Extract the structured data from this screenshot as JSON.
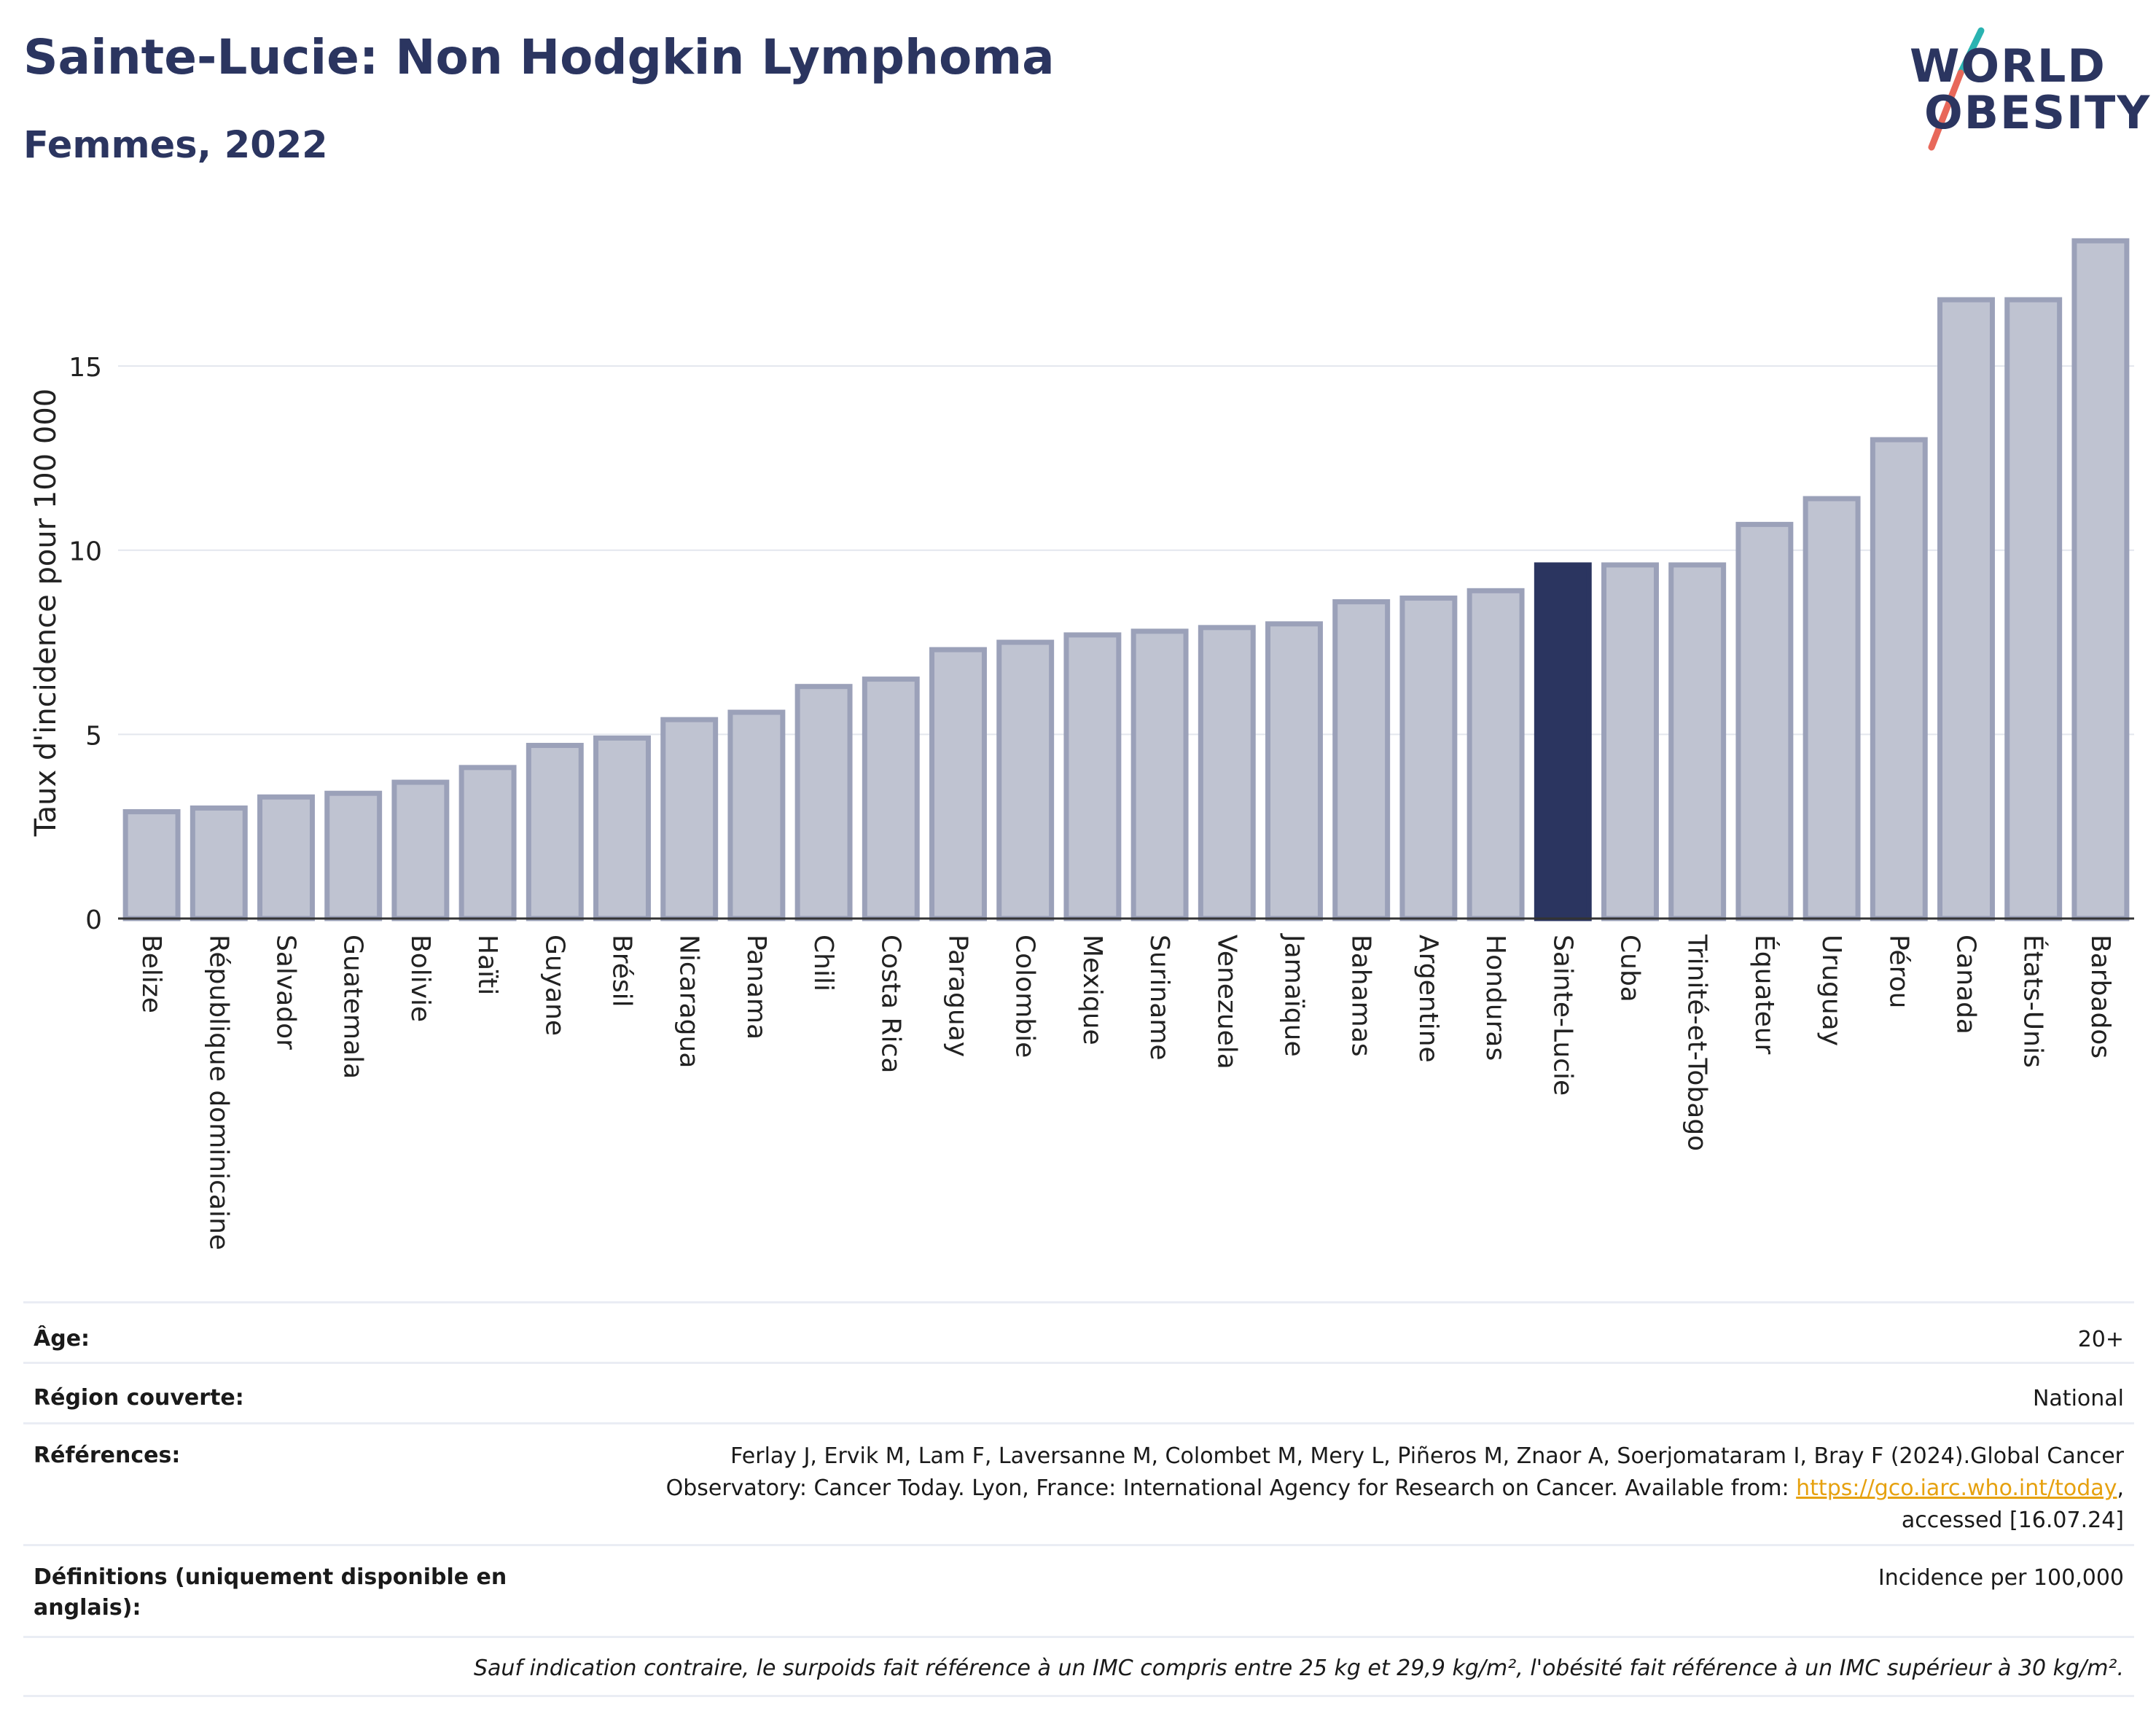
{
  "header": {
    "title": "Sainte-Lucie: Non Hodgkin Lymphoma",
    "subtitle": "Femmes, 2022"
  },
  "logo": {
    "line1": "WORLD",
    "line2": "OBESITY"
  },
  "colors": {
    "bar": "#bfc3d1",
    "bar_border": "#9ba1b9",
    "highlight": "#2b3560",
    "grid": "#e3e6ee"
  },
  "chart_data": {
    "type": "bar",
    "ylabel": "Taux d'incidence pour 100 000",
    "ylim": [
      0,
      19
    ],
    "yticks": [
      0,
      5,
      10,
      15
    ],
    "grid": true,
    "highlight": "Sainte-Lucie",
    "categories": [
      "Belize",
      "République dominicaine",
      "Salvador",
      "Guatemala",
      "Bolivie",
      "Haïti",
      "Guyane",
      "Brésil",
      "Nicaragua",
      "Panama",
      "Chili",
      "Costa Rica",
      "Paraguay",
      "Colombie",
      "Mexique",
      "Suriname",
      "Venezuela",
      "Jamaïque",
      "Bahamas",
      "Argentine",
      "Honduras",
      "Sainte-Lucie",
      "Cuba",
      "Trinité-et-Tobago",
      "Équateur",
      "Uruguay",
      "Pérou",
      "Canada",
      "États-Unis",
      "Barbados"
    ],
    "values": [
      2.9,
      3.0,
      3.3,
      3.4,
      3.7,
      4.1,
      4.7,
      4.9,
      5.4,
      5.6,
      6.3,
      6.5,
      7.3,
      7.5,
      7.7,
      7.8,
      7.9,
      8.0,
      8.6,
      8.7,
      8.9,
      9.6,
      9.6,
      9.6,
      10.7,
      11.4,
      13.0,
      16.8,
      16.8,
      18.4
    ]
  },
  "info": {
    "age_label": "Âge:",
    "age_value": "20+",
    "region_label": "Région couverte:",
    "region_value": "National",
    "refs_label": "Références:",
    "refs_line1": "Ferlay J, Ervik M, Lam F, Laversanne M, Colombet M, Mery L, Piñeros M, Znaor A, Soerjomataram I, Bray F (2024).Global Cancer",
    "refs_line2": "Observatory: Cancer Today. Lyon, France: International Agency for Research on Cancer. Available from: ",
    "refs_link": "https://gco.iarc.who.int/today",
    "refs_line2_end": ",",
    "refs_line3": "accessed [16.07.24]",
    "defs_label_line1": "Définitions (uniquement disponible en",
    "defs_label_line2": "anglais):",
    "defs_value": "Incidence per 100,000",
    "note": "Sauf indication contraire, le surpoids fait référence à un IMC compris entre 25 kg et 29,9 kg/m², l'obésité fait référence à un IMC supérieur à 30 kg/m²."
  }
}
